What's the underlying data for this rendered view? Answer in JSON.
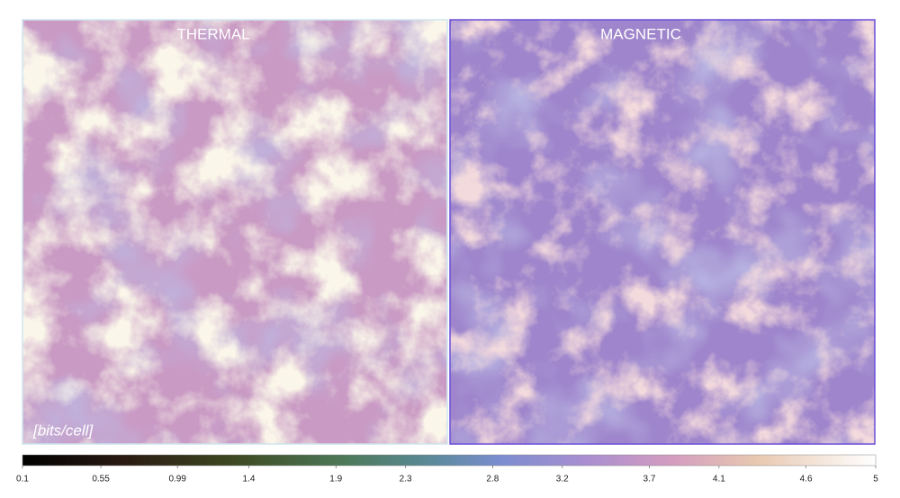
{
  "panels": [
    {
      "title": "THERMAL"
    },
    {
      "title": "MAGNETIC"
    }
  ],
  "unit_label": "[bits/cell]",
  "colorbar": {
    "lim": [
      0.1,
      5
    ],
    "ticks": [
      0.1,
      0.55,
      0.99,
      1.4,
      1.9,
      2.3,
      2.8,
      3.2,
      3.7,
      4.1,
      4.6,
      5
    ]
  }
}
